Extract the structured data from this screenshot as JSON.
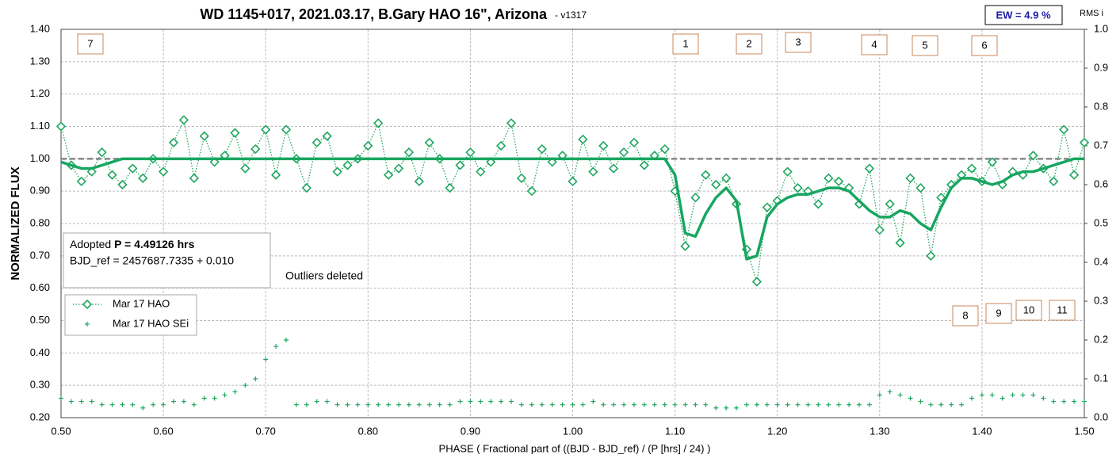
{
  "chart_data": {
    "type": "scatter",
    "title": "WD 1145+017, 2021.03.17, B.Gary HAO 16\", Arizona",
    "subtitle": "- v1317",
    "ew_label": "EW = 4.9 %",
    "y2_label": "RMS i",
    "ylabel": "NORMALIZED FLUX",
    "xlabel": "PHASE ( Fractional part of ((BJD - BJD_ref) / (P [hrs] / 24) )",
    "info_prefix": "Adopted ",
    "info_bold": "P = 4.49126 hrs",
    "info_line2": "BJD_ref = 2457687.7335 + 0.010",
    "note": "Outliers deleted",
    "event_labels": [
      "7",
      "1",
      "2",
      "3",
      "4",
      "5",
      "6",
      "8",
      "9",
      "10",
      "11"
    ],
    "reference_line": 1.0,
    "xlim": [
      0.5,
      1.5
    ],
    "xticks": [
      {
        "value": 0.5,
        "label": "0.50"
      },
      {
        "value": 0.6,
        "label": "0.60"
      },
      {
        "value": 0.7,
        "label": "0.70"
      },
      {
        "value": 0.8,
        "label": "0.80"
      },
      {
        "value": 0.9,
        "label": "0.90"
      },
      {
        "value": 1.0,
        "label": "1.00"
      },
      {
        "value": 1.1,
        "label": "1.10"
      },
      {
        "value": 1.2,
        "label": "1.20"
      },
      {
        "value": 1.3,
        "label": "1.30"
      },
      {
        "value": 1.4,
        "label": "1.40"
      },
      {
        "value": 1.5,
        "label": "1.50"
      }
    ],
    "ylim": [
      0.2,
      1.4
    ],
    "yticks": [
      {
        "value": 0.2,
        "label": "0.20"
      },
      {
        "value": 0.3,
        "label": "0.30"
      },
      {
        "value": 0.4,
        "label": "0.40"
      },
      {
        "value": 0.5,
        "label": "0.50"
      },
      {
        "value": 0.6,
        "label": "0.60"
      },
      {
        "value": 0.7,
        "label": "0.70"
      },
      {
        "value": 0.8,
        "label": "0.80"
      },
      {
        "value": 0.9,
        "label": "0.90"
      },
      {
        "value": 1.0,
        "label": "1.00"
      },
      {
        "value": 1.1,
        "label": "1.10"
      },
      {
        "value": 1.2,
        "label": "1.20"
      },
      {
        "value": 1.3,
        "label": "1.30"
      },
      {
        "value": 1.4,
        "label": "1.40"
      }
    ],
    "y2lim": [
      0,
      1
    ],
    "y2ticks": [
      {
        "value": 0,
        "label": "0.0"
      },
      0.1,
      0.2,
      0.3,
      0.4,
      0.5,
      0.6,
      0.7,
      0.8,
      0.9,
      {
        "value": 1,
        "label": "1.0"
      }
    ],
    "grid": true,
    "legend": "bottom-left",
    "x": [
      0.5,
      0.51,
      0.52,
      0.53,
      0.54,
      0.55,
      0.56,
      0.57,
      0.58,
      0.59,
      0.6,
      0.61,
      0.62,
      0.63,
      0.64,
      0.65,
      0.66,
      0.67,
      0.68,
      0.69,
      0.7,
      0.71,
      0.72,
      0.73,
      0.74,
      0.75,
      0.76,
      0.77,
      0.78,
      0.79,
      0.8,
      0.81,
      0.82,
      0.83,
      0.84,
      0.85,
      0.86,
      0.87,
      0.88,
      0.89,
      0.9,
      0.91,
      0.92,
      0.93,
      0.94,
      0.95,
      0.96,
      0.97,
      0.98,
      0.99,
      1.0,
      1.01,
      1.02,
      1.03,
      1.04,
      1.05,
      1.06,
      1.07,
      1.08,
      1.09,
      1.1,
      1.11,
      1.12,
      1.13,
      1.14,
      1.15,
      1.16,
      1.17,
      1.18,
      1.19,
      1.2,
      1.21,
      1.22,
      1.23,
      1.24,
      1.25,
      1.26,
      1.27,
      1.28,
      1.29,
      1.3,
      1.31,
      1.32,
      1.33,
      1.34,
      1.35,
      1.36,
      1.37,
      1.38,
      1.39,
      1.4,
      1.41,
      1.42,
      1.43,
      1.44,
      1.45,
      1.46,
      1.47,
      1.48,
      1.49,
      1.5
    ],
    "series": [
      {
        "name": "Mar 17 HAO",
        "color": "#1fa65f",
        "style": "diamond",
        "values": [
          1.1,
          0.98,
          0.93,
          0.96,
          1.02,
          0.95,
          0.92,
          0.97,
          0.94,
          1.0,
          0.96,
          1.05,
          1.12,
          0.94,
          1.07,
          0.99,
          1.01,
          1.08,
          0.97,
          1.03,
          1.09,
          0.95,
          1.09,
          1.0,
          0.91,
          1.05,
          1.07,
          0.96,
          0.98,
          1.0,
          1.04,
          1.11,
          0.95,
          0.97,
          1.02,
          0.93,
          1.05,
          1.0,
          0.91,
          0.98,
          1.02,
          0.96,
          0.99,
          1.04,
          1.11,
          0.94,
          0.9,
          1.03,
          0.99,
          1.01,
          0.93,
          1.06,
          0.96,
          1.04,
          0.97,
          1.02,
          1.05,
          0.98,
          1.01,
          1.03,
          0.9,
          0.73,
          0.88,
          0.95,
          0.92,
          0.94,
          0.86,
          0.72,
          0.62,
          0.85,
          0.87,
          0.96,
          0.91,
          0.9,
          0.86,
          0.94,
          0.93,
          0.91,
          0.86,
          0.97,
          0.78,
          0.86,
          0.74,
          0.94,
          0.91,
          0.7,
          0.88,
          0.92,
          0.95,
          0.97,
          0.93,
          0.99,
          0.92,
          0.96,
          0.95,
          1.01,
          0.97,
          0.93,
          1.09,
          0.95,
          1.05
        ]
      },
      {
        "name": "Mar 17 HAO SEi",
        "color": "#1fa65f",
        "style": "cross",
        "values": [
          0.26,
          0.25,
          0.25,
          0.25,
          0.24,
          0.24,
          0.24,
          0.24,
          0.23,
          0.24,
          0.24,
          0.25,
          0.25,
          0.24,
          0.26,
          0.26,
          0.27,
          0.28,
          0.3,
          0.32,
          0.38,
          0.42,
          0.44,
          0.24,
          0.24,
          0.25,
          0.25,
          0.24,
          0.24,
          0.24,
          0.24,
          0.24,
          0.24,
          0.24,
          0.24,
          0.24,
          0.24,
          0.24,
          0.24,
          0.25,
          0.25,
          0.25,
          0.25,
          0.25,
          0.25,
          0.24,
          0.24,
          0.24,
          0.24,
          0.24,
          0.24,
          0.24,
          0.25,
          0.24,
          0.24,
          0.24,
          0.24,
          0.24,
          0.24,
          0.24,
          0.24,
          0.24,
          0.24,
          0.24,
          0.23,
          0.23,
          0.23,
          0.24,
          0.24,
          0.24,
          0.24,
          0.24,
          0.24,
          0.24,
          0.24,
          0.24,
          0.24,
          0.24,
          0.24,
          0.24,
          0.27,
          0.28,
          0.27,
          0.26,
          0.25,
          0.24,
          0.24,
          0.24,
          0.24,
          0.26,
          0.27,
          0.27,
          0.26,
          0.27,
          0.27,
          0.27,
          0.26,
          0.25,
          0.25,
          0.25,
          0.25
        ]
      },
      {
        "color": "#17a660",
        "style": "fit",
        "values": [
          0.99,
          0.98,
          0.97,
          0.97,
          0.98,
          0.99,
          1.0,
          1.0,
          1.0,
          1.0,
          1.0,
          1.0,
          1.0,
          1.0,
          1.0,
          1.0,
          1.0,
          1.0,
          1.0,
          1.0,
          1.0,
          1.0,
          1.0,
          1.0,
          1.0,
          1.0,
          1.0,
          1.0,
          1.0,
          1.0,
          1.0,
          1.0,
          1.0,
          1.0,
          1.0,
          1.0,
          1.0,
          1.0,
          1.0,
          1.0,
          1.0,
          1.0,
          1.0,
          1.0,
          1.0,
          1.0,
          1.0,
          1.0,
          1.0,
          1.0,
          1.0,
          1.0,
          1.0,
          1.0,
          1.0,
          1.0,
          1.0,
          1.0,
          1.0,
          1.0,
          0.95,
          0.77,
          0.76,
          0.83,
          0.88,
          0.91,
          0.87,
          0.69,
          0.7,
          0.82,
          0.86,
          0.88,
          0.89,
          0.89,
          0.9,
          0.91,
          0.91,
          0.9,
          0.87,
          0.84,
          0.82,
          0.82,
          0.84,
          0.83,
          0.8,
          0.78,
          0.85,
          0.91,
          0.94,
          0.94,
          0.93,
          0.92,
          0.93,
          0.95,
          0.96,
          0.96,
          0.97,
          0.98,
          0.99,
          1.0,
          1.0
        ]
      }
    ]
  }
}
